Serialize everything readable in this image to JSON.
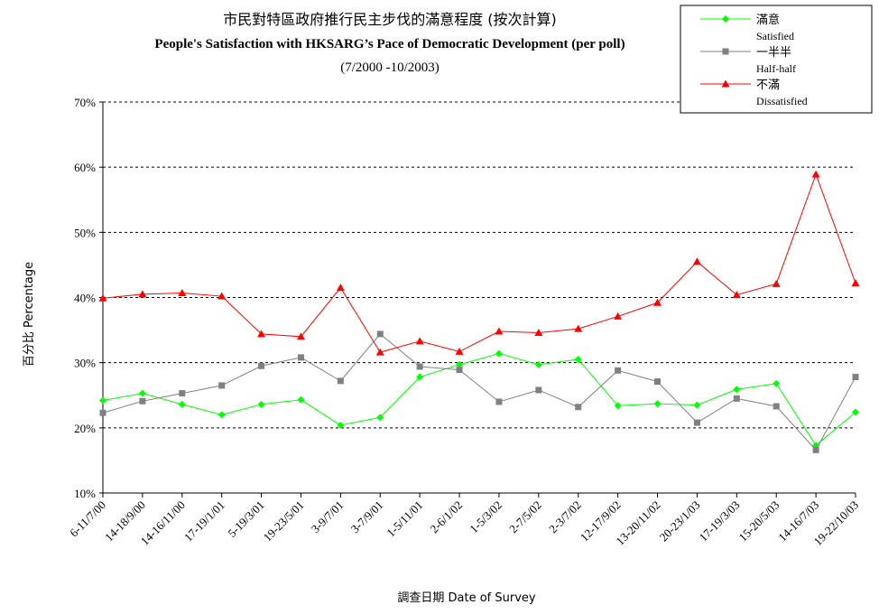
{
  "chart_data": {
    "type": "line",
    "title_zh": "市民對特區政府推行民主步伐的滿意程度 (按次計算)",
    "title_en": "People's Satisfaction with HKSARG’s Pace of Democratic Development  (per poll)",
    "subtitle": "(7/2000 -10/2003)",
    "xlabel": "調查日期 Date of Survey",
    "ylabel": "百分比 Percentage",
    "ylim": [
      10,
      70
    ],
    "yticks": [
      "10%",
      "20%",
      "30%",
      "40%",
      "50%",
      "60%",
      "70%"
    ],
    "ytick_values": [
      10,
      20,
      30,
      40,
      50,
      60,
      70
    ],
    "grid": true,
    "legend_position": "top-right",
    "categories": [
      "6-11/7/00",
      "14-18/9/00",
      "14-16/11/00",
      "17-19/1/01",
      "5-19/3/01",
      "19-23/5/01",
      "3-9/7/01",
      "3-7/9/01",
      "1-5/11/01",
      "2-6/1/02",
      "1-5/3/02",
      "2-7/5/02",
      "2-3/7/02",
      "12-17/9/02",
      "13-20/11/02",
      "20-23/1/03",
      "17-19/3/03",
      "15-20/5/03",
      "14-16/7/03",
      "19-22/10/03"
    ],
    "series": [
      {
        "name_zh": "滿意",
        "name_en": "Satisfied",
        "color": "#00ff00",
        "marker": "diamond",
        "values": [
          24.2,
          25.3,
          23.6,
          22.0,
          23.6,
          24.3,
          20.4,
          21.6,
          27.8,
          29.7,
          31.4,
          29.7,
          30.5,
          23.4,
          23.7,
          23.5,
          25.9,
          26.8,
          17.3,
          22.4
        ]
      },
      {
        "name_zh": "一半半",
        "name_en": "Half-half",
        "color": "#808080",
        "marker": "square",
        "values": [
          22.3,
          24.1,
          25.3,
          26.5,
          29.5,
          30.8,
          27.2,
          34.4,
          29.4,
          28.9,
          24.0,
          25.8,
          23.2,
          28.8,
          27.1,
          20.8,
          24.5,
          23.3,
          16.6,
          27.8
        ]
      },
      {
        "name_zh": "不滿",
        "name_en": "Dissatisfied",
        "color": "#ff0000",
        "marker": "triangle",
        "values": [
          39.9,
          40.5,
          40.7,
          40.2,
          34.4,
          34.0,
          41.5,
          31.6,
          33.3,
          31.7,
          34.8,
          34.6,
          35.2,
          37.1,
          39.2,
          45.5,
          40.4,
          42.1,
          58.9,
          42.2
        ]
      }
    ]
  }
}
